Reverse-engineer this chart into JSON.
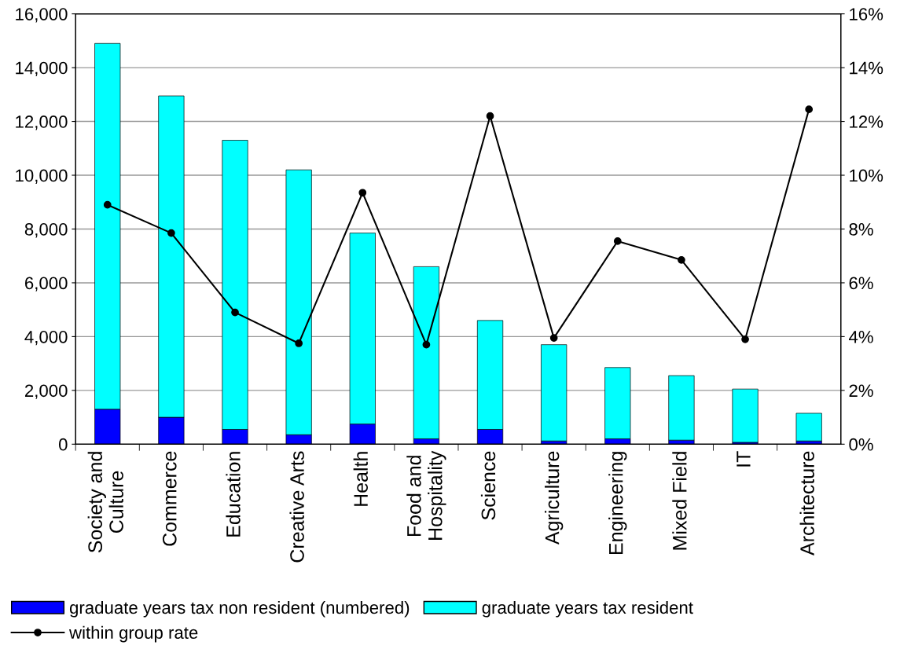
{
  "chart_data": {
    "type": "bar",
    "stacked": true,
    "categories": [
      "Society and\nCulture",
      "Commerce",
      "Education",
      "Creative Arts",
      "Health",
      "Food and\nHospitality",
      "Science",
      "Agriculture",
      "Engineering",
      "Mixed Field",
      "IT",
      "Architecture"
    ],
    "series": [
      {
        "name": "graduate years tax non resident (numbered)",
        "color": "#0000ff",
        "values": [
          1300,
          1000,
          550,
          350,
          750,
          200,
          550,
          120,
          200,
          150,
          70,
          120
        ]
      },
      {
        "name": "graduate years tax resident",
        "color": "#00ffff",
        "values": [
          13600,
          11950,
          10750,
          9850,
          7100,
          6400,
          4050,
          3580,
          2650,
          2400,
          1980,
          1030
        ]
      },
      {
        "name": "within group rate",
        "type": "line",
        "axis": "y2",
        "color": "#000000",
        "marker": "circle",
        "line_style": "solid",
        "values": [
          8.9,
          7.85,
          4.9,
          3.75,
          9.35,
          3.7,
          12.2,
          3.95,
          7.55,
          6.85,
          3.9,
          12.45
        ]
      }
    ],
    "ylim": [
      0,
      16000
    ],
    "yticks": [
      {
        "value": 0,
        "label": "0"
      },
      {
        "value": 2000,
        "label": "2,000"
      },
      {
        "value": 4000,
        "label": "4,000"
      },
      {
        "value": 6000,
        "label": "6,000"
      },
      {
        "value": 8000,
        "label": "8,000"
      },
      {
        "value": 10000,
        "label": "10,000"
      },
      {
        "value": 12000,
        "label": "12,000"
      },
      {
        "value": 14000,
        "label": "14,000"
      },
      {
        "value": 16000,
        "label": "16,000"
      }
    ],
    "y2lim": [
      0,
      16
    ],
    "y2ticks": [
      {
        "value": 0,
        "label": "0%"
      },
      {
        "value": 2,
        "label": "2%"
      },
      {
        "value": 4,
        "label": "4%"
      },
      {
        "value": 6,
        "label": "6%"
      },
      {
        "value": 8,
        "label": "8%"
      },
      {
        "value": 10,
        "label": "10%"
      },
      {
        "value": 12,
        "label": "12%"
      },
      {
        "value": 14,
        "label": "14%"
      },
      {
        "value": 16,
        "label": "16%"
      }
    ],
    "grid": "y",
    "legend": "bottom"
  }
}
